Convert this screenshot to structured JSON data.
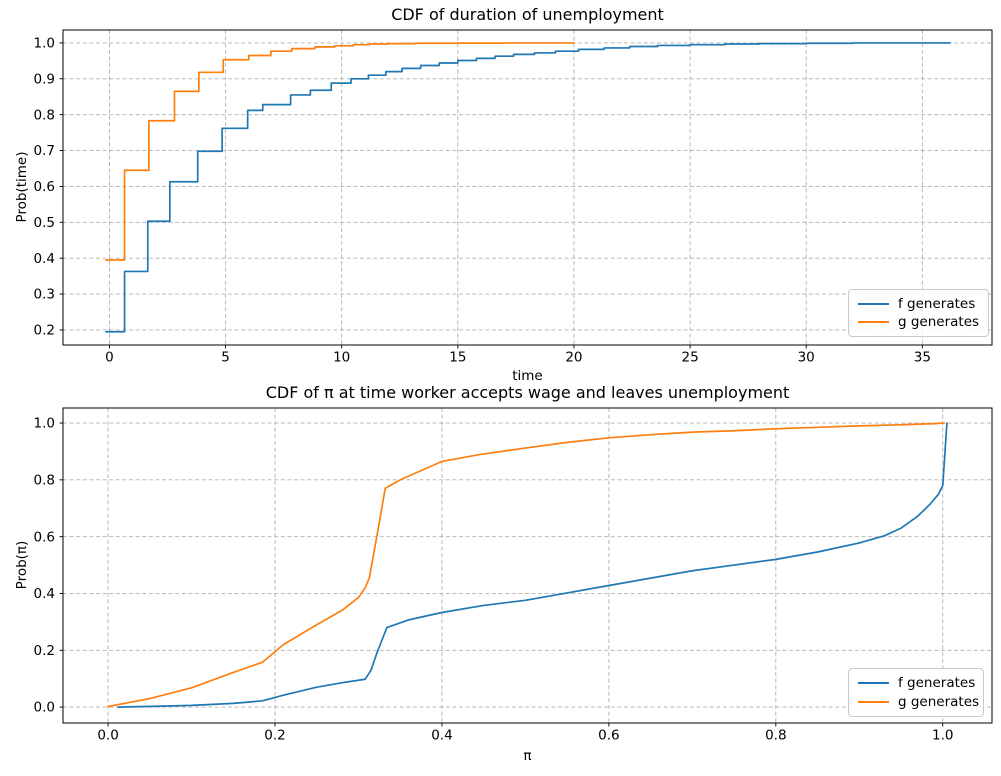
{
  "figure": {
    "background": "#ffffff",
    "text_color": "#000000",
    "grid_color": "#b0b0b0",
    "spine_color": "#000000",
    "legend_border_color": "#c9c9c9"
  },
  "chart_data": [
    {
      "type": "line",
      "subtype": "empirical-step-cdf",
      "title": "CDF of duration of unemployment",
      "xlabel": "time",
      "ylabel": "Prob(time)",
      "grid": true,
      "grid_style": "dashed",
      "legend_position": "lower right",
      "legend": [
        "f generates",
        "g generates"
      ],
      "xlim": [
        -2.0,
        38.0
      ],
      "ylim": [
        0.158,
        1.036
      ],
      "xticks": [
        0,
        5,
        10,
        15,
        20,
        25,
        30,
        35
      ],
      "xtick_labels": [
        "0",
        "5",
        "10",
        "15",
        "20",
        "25",
        "30",
        "35"
      ],
      "yticks": [
        0.2,
        0.3,
        0.4,
        0.5,
        0.6,
        0.7,
        0.8,
        0.9,
        1.0
      ],
      "ytick_labels": [
        "0.2",
        "0.3",
        "0.4",
        "0.5",
        "0.6",
        "0.7",
        "0.8",
        "0.9",
        "1.0"
      ],
      "series": [
        {
          "name": "f generates",
          "color": "#1f77b4",
          "draw": "step",
          "points": [
            [
              -0.15,
              0.195
            ],
            [
              0.65,
              0.363
            ],
            [
              1.65,
              0.503
            ],
            [
              2.6,
              0.613
            ],
            [
              3.8,
              0.698
            ],
            [
              4.85,
              0.762
            ],
            [
              5.95,
              0.812
            ],
            [
              6.6,
              0.828
            ],
            [
              7.8,
              0.855
            ],
            [
              8.65,
              0.868
            ],
            [
              9.55,
              0.888
            ],
            [
              10.4,
              0.9
            ],
            [
              11.15,
              0.91
            ],
            [
              11.9,
              0.92
            ],
            [
              12.6,
              0.929
            ],
            [
              13.4,
              0.937
            ],
            [
              14.2,
              0.944
            ],
            [
              15.0,
              0.951
            ],
            [
              15.8,
              0.957
            ],
            [
              16.6,
              0.963
            ],
            [
              17.4,
              0.968
            ],
            [
              18.3,
              0.972
            ],
            [
              19.2,
              0.977
            ],
            [
              20.2,
              0.982
            ],
            [
              21.3,
              0.986
            ],
            [
              22.4,
              0.99
            ],
            [
              23.6,
              0.993
            ],
            [
              25.0,
              0.995
            ],
            [
              26.5,
              0.997
            ],
            [
              28.0,
              0.998
            ],
            [
              30.0,
              0.999
            ],
            [
              32.0,
              1.0
            ],
            [
              36.2,
              1.0
            ]
          ]
        },
        {
          "name": "g generates",
          "color": "#ff7f0e",
          "draw": "step",
          "points": [
            [
              -0.15,
              0.395
            ],
            [
              0.65,
              0.645
            ],
            [
              1.7,
              0.783
            ],
            [
              2.8,
              0.865
            ],
            [
              3.85,
              0.918
            ],
            [
              4.9,
              0.953
            ],
            [
              6.0,
              0.965
            ],
            [
              6.95,
              0.977
            ],
            [
              7.85,
              0.984
            ],
            [
              8.85,
              0.989
            ],
            [
              9.7,
              0.992
            ],
            [
              10.5,
              0.995
            ],
            [
              11.2,
              0.997
            ],
            [
              12.0,
              0.998
            ],
            [
              13.2,
              0.999
            ],
            [
              15.0,
              0.9995
            ],
            [
              17.0,
              1.0
            ],
            [
              20.0,
              1.0
            ]
          ]
        }
      ]
    },
    {
      "type": "line",
      "subtype": "empirical-cdf",
      "title": "CDF of π at time worker accepts wage and leaves unemployment",
      "xlabel": "π",
      "ylabel": "Prob(π)",
      "grid": true,
      "grid_style": "dashed",
      "legend_position": "lower right",
      "legend": [
        "f generates",
        "g generates"
      ],
      "xlim": [
        -0.054,
        1.059
      ],
      "ylim": [
        -0.056,
        1.053
      ],
      "xticks": [
        0.0,
        0.2,
        0.4,
        0.6,
        0.8,
        1.0
      ],
      "xtick_labels": [
        "0.0",
        "0.2",
        "0.4",
        "0.6",
        "0.8",
        "1.0"
      ],
      "yticks": [
        0.0,
        0.2,
        0.4,
        0.6,
        0.8,
        1.0
      ],
      "ytick_labels": [
        "0.0",
        "0.2",
        "0.4",
        "0.6",
        "0.8",
        "1.0"
      ],
      "series": [
        {
          "name": "f generates",
          "color": "#1f77b4",
          "draw": "line",
          "points": [
            [
              0.012,
              0.0
            ],
            [
              0.06,
              0.003
            ],
            [
              0.1,
              0.006
            ],
            [
              0.15,
              0.013
            ],
            [
              0.185,
              0.022
            ],
            [
              0.21,
              0.042
            ],
            [
              0.25,
              0.07
            ],
            [
              0.285,
              0.088
            ],
            [
              0.308,
              0.098
            ],
            [
              0.315,
              0.13
            ],
            [
              0.322,
              0.19
            ],
            [
              0.334,
              0.28
            ],
            [
              0.36,
              0.307
            ],
            [
              0.4,
              0.333
            ],
            [
              0.45,
              0.358
            ],
            [
              0.5,
              0.376
            ],
            [
              0.55,
              0.402
            ],
            [
              0.6,
              0.428
            ],
            [
              0.65,
              0.454
            ],
            [
              0.7,
              0.48
            ],
            [
              0.75,
              0.5
            ],
            [
              0.8,
              0.52
            ],
            [
              0.85,
              0.546
            ],
            [
              0.9,
              0.578
            ],
            [
              0.93,
              0.603
            ],
            [
              0.95,
              0.63
            ],
            [
              0.97,
              0.672
            ],
            [
              0.985,
              0.715
            ],
            [
              0.995,
              0.75
            ],
            [
              1.0,
              0.78
            ],
            [
              1.005,
              1.0
            ]
          ]
        },
        {
          "name": "g generates",
          "color": "#ff7f0e",
          "draw": "line",
          "points": [
            [
              0.0,
              0.002
            ],
            [
              0.05,
              0.03
            ],
            [
              0.1,
              0.068
            ],
            [
              0.15,
              0.122
            ],
            [
              0.185,
              0.158
            ],
            [
              0.21,
              0.22
            ],
            [
              0.25,
              0.29
            ],
            [
              0.28,
              0.34
            ],
            [
              0.3,
              0.386
            ],
            [
              0.308,
              0.42
            ],
            [
              0.313,
              0.455
            ],
            [
              0.325,
              0.65
            ],
            [
              0.332,
              0.77
            ],
            [
              0.35,
              0.8
            ],
            [
              0.4,
              0.865
            ],
            [
              0.445,
              0.889
            ],
            [
              0.5,
              0.912
            ],
            [
              0.55,
              0.932
            ],
            [
              0.6,
              0.948
            ],
            [
              0.65,
              0.959
            ],
            [
              0.7,
              0.968
            ],
            [
              0.75,
              0.973
            ],
            [
              0.8,
              0.98
            ],
            [
              0.85,
              0.985
            ],
            [
              0.9,
              0.99
            ],
            [
              0.95,
              0.994
            ],
            [
              0.99,
              0.998
            ],
            [
              1.002,
              1.0
            ]
          ]
        }
      ]
    }
  ]
}
